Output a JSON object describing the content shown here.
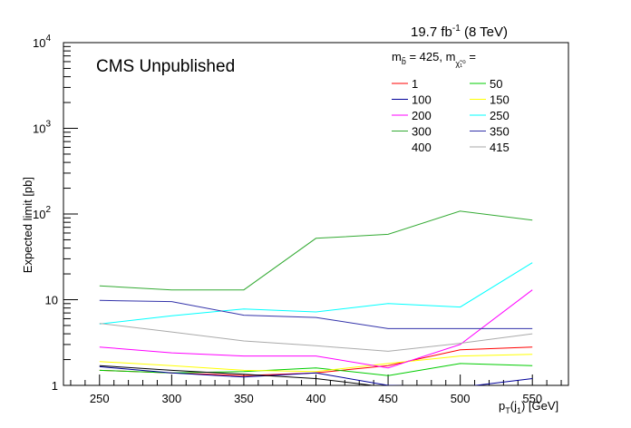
{
  "chart_data": {
    "type": "line",
    "title": "19.7 fb⁻¹ (8 TeV)",
    "annotation": "CMS Unpublished",
    "xlabel": "p_T(j_1) [GeV]",
    "ylabel": "Expected limit [pb]",
    "xlim": [
      225,
      575
    ],
    "ylim": [
      1,
      10000
    ],
    "yscale": "log",
    "x": [
      250,
      300,
      350,
      400,
      450,
      500,
      550
    ],
    "x_ticks": [
      "250",
      "300",
      "350",
      "400",
      "450",
      "500",
      "550"
    ],
    "y_ticks": [
      {
        "value": 1,
        "label": "1"
      },
      {
        "value": 10,
        "label": "10"
      },
      {
        "value": 100,
        "label": "10",
        "exp": "2"
      },
      {
        "value": 1000,
        "label": "10",
        "exp": "3"
      },
      {
        "value": 10000,
        "label": "10",
        "exp": "4"
      }
    ],
    "legend_header": "m_b̃ = 425, m_χ̃₁⁰ =",
    "legend_position": "top-right",
    "grid": false,
    "series": [
      {
        "name": "1",
        "color": "#ff0000",
        "values": [
          1.5,
          1.4,
          1.3,
          1.4,
          1.7,
          2.6,
          2.8
        ]
      },
      {
        "name": "50",
        "color": "#00cc00",
        "values": [
          1.5,
          1.4,
          1.45,
          1.6,
          1.3,
          1.8,
          1.7
        ]
      },
      {
        "name": "100",
        "color": "#000099",
        "values": [
          1.65,
          1.4,
          1.25,
          1.4,
          1.0,
          0.95,
          1.2
        ]
      },
      {
        "name": "150",
        "color": "#ffff00",
        "values": [
          1.9,
          1.7,
          1.5,
          1.45,
          1.8,
          2.2,
          2.3
        ]
      },
      {
        "name": "200",
        "color": "#ff00ff",
        "values": [
          2.8,
          2.4,
          2.2,
          2.2,
          1.6,
          3.0,
          13.0
        ]
      },
      {
        "name": "250",
        "color": "#00ffff",
        "values": [
          5.2,
          6.5,
          7.8,
          7.2,
          9.0,
          8.2,
          27.0
        ]
      },
      {
        "name": "300",
        "color": "#33aa33",
        "values": [
          14.5,
          13.0,
          13.0,
          52.0,
          58.0,
          108.0,
          85.0
        ]
      },
      {
        "name": "350",
        "color": "#3333aa",
        "values": [
          9.8,
          9.5,
          6.6,
          6.2,
          4.6,
          4.6,
          4.6
        ]
      },
      {
        "name": "400",
        "color": "#000000",
        "values": [
          1.7,
          1.5,
          1.35,
          1.2,
          0.95,
          0.9,
          0.85
        ]
      },
      {
        "name": "415",
        "color": "#aaaaaa",
        "values": [
          5.3,
          4.2,
          3.3,
          2.9,
          2.5,
          3.1,
          4.0
        ]
      }
    ]
  }
}
